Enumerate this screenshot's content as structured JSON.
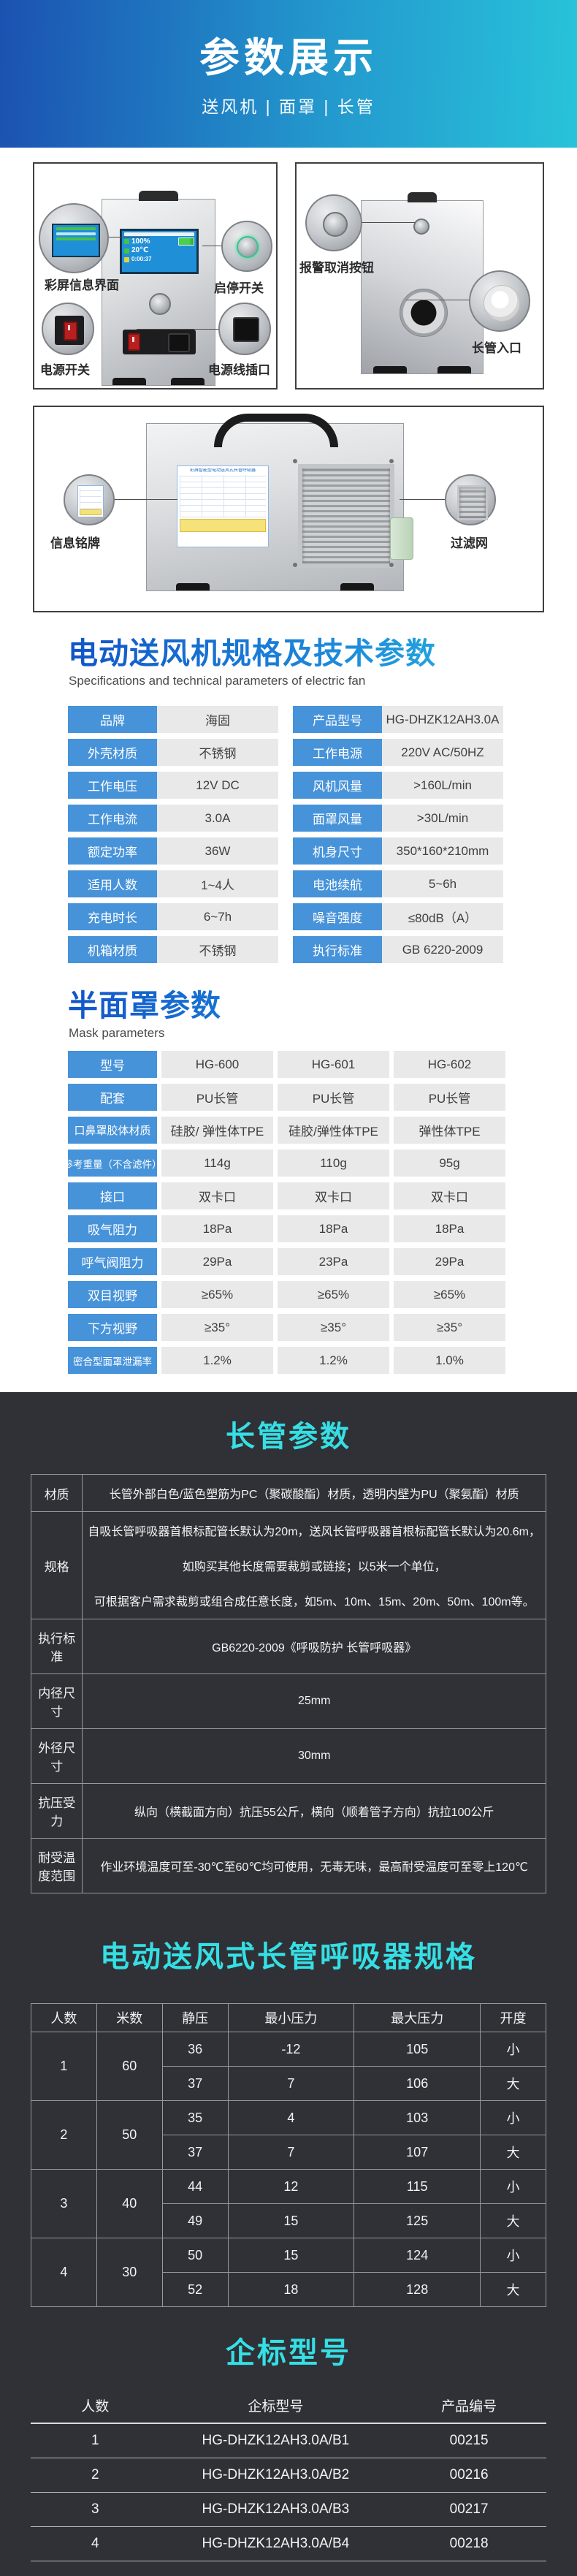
{
  "banner": {
    "title": "参数展示",
    "subtitle": "送风机 | 面罩 | 长管"
  },
  "colors": {
    "banner_blue": "#1b52b1",
    "banner_cyan": "#28c3da",
    "label_cell_blue": "#4793da",
    "value_cell_gray": "#e9e9e9",
    "dark_background": "#2f3136",
    "dark_title_cyan": "#35dfe4",
    "title_gradient_start": "#1155c8",
    "title_gradient_end": "#2cc4e0"
  },
  "photos": {
    "box1": {
      "screen": {
        "percent": "100%",
        "temp": "20℃",
        "time": "0:00:37"
      },
      "callouts": {
        "screen": "彩屏信息界面",
        "start_stop": "启停开关",
        "power_switch": "电源开关",
        "power_inlet": "电源线插口"
      }
    },
    "box2": {
      "callouts": {
        "alarm_cancel": "报警取消按钮",
        "tube_inlet": "长管入口"
      }
    },
    "box3": {
      "nameplate_title": "彩屏智能型电动送风式长管呼吸器",
      "callouts": {
        "nameplate": "信息铭牌",
        "filter": "过滤网"
      }
    }
  },
  "fan_section": {
    "title": "电动送风机规格及技术参数",
    "subtitle": "Specifications and technical parameters of electric fan",
    "rows": [
      {
        "l1": "品牌",
        "v1": "海固",
        "l2": "产品型号",
        "v2": "HG-DHZK12AH3.0A"
      },
      {
        "l1": "外壳材质",
        "v1": "不锈钢",
        "l2": "工作电源",
        "v2": "220V AC/50HZ"
      },
      {
        "l1": "工作电压",
        "v1": "12V DC",
        "l2": "风机风量",
        "v2": ">160L/min"
      },
      {
        "l1": "工作电流",
        "v1": "3.0A",
        "l2": "面罩风量",
        "v2": ">30L/min"
      },
      {
        "l1": "额定功率",
        "v1": "36W",
        "l2": "机身尺寸",
        "v2": "350*160*210mm"
      },
      {
        "l1": "适用人数",
        "v1": "1~4人",
        "l2": "电池续航",
        "v2": "5~6h"
      },
      {
        "l1": "充电时长",
        "v1": "6~7h",
        "l2": "噪音强度",
        "v2": "≤80dB（A）"
      },
      {
        "l1": "机箱材质",
        "v1": "不锈钢",
        "l2": "执行标准",
        "v2": "GB 6220-2009"
      }
    ]
  },
  "mask_section": {
    "title": "半面罩参数",
    "subtitle": "Mask parameters",
    "rows": [
      {
        "label": "型号",
        "values": [
          "HG-600",
          "HG-601",
          "HG-602"
        ]
      },
      {
        "label": "配套",
        "values": [
          "PU长管",
          "PU长管",
          "PU长管"
        ]
      },
      {
        "label": "口鼻罩胶体材质",
        "values": [
          "硅胶/ 弹性体TPE",
          "硅胶/弹性体TPE",
          "弹性体TPE"
        ]
      },
      {
        "label": "参考重量（不含滤件）",
        "values": [
          "114g",
          "110g",
          "95g"
        ]
      },
      {
        "label": "接口",
        "values": [
          "双卡口",
          "双卡口",
          "双卡口"
        ]
      },
      {
        "label": "吸气阻力",
        "values": [
          "18Pa",
          "18Pa",
          "18Pa"
        ]
      },
      {
        "label": "呼气阀阻力",
        "values": [
          "29Pa",
          "23Pa",
          "29Pa"
        ]
      },
      {
        "label": "双目视野",
        "values": [
          "≥65%",
          "≥65%",
          "≥65%"
        ]
      },
      {
        "label": "下方视野",
        "values": [
          "≥35°",
          "≥35°",
          "≥35°"
        ]
      },
      {
        "label": "密合型面罩泄漏率",
        "values": [
          "1.2%",
          "1.2%",
          "1.0%"
        ]
      }
    ]
  },
  "tube_section": {
    "title": "长管参数",
    "rows": [
      {
        "label": "材质",
        "lines": [
          "长管外部白色/蓝色塑筋为PC（聚碳酸酯）材质，透明内壁为PU（聚氨酯）材质"
        ]
      },
      {
        "label": "规格",
        "lines": [
          "自吸长管呼吸器首根标配管长默认为20m，送风长管呼吸器首根标配管长默认为20.6m，",
          "如购买其他长度需要裁剪或链接；以5米一个单位，",
          "可根据客户需求裁剪或组合成任意长度，如5m、10m、15m、20m、50m、100m等。"
        ]
      },
      {
        "label": "执行标准",
        "lines": [
          "GB6220-2009《呼吸防护 长管呼吸器》"
        ]
      },
      {
        "label": "内径尺寸",
        "lines": [
          "25mm"
        ]
      },
      {
        "label": "外径尺寸",
        "lines": [
          "30mm"
        ]
      },
      {
        "label": "抗压受力",
        "lines": [
          "纵向（横截面方向）抗压55公斤，横向（顺着管子方向）抗拉100公斤"
        ]
      },
      {
        "label": "耐受温度范围",
        "lines": [
          "作业环境温度可至-30℃至60℃均可使用，无毒无味，最高耐受温度可至零上120℃"
        ]
      }
    ]
  },
  "pressure_section": {
    "title": "电动送风式长管呼吸器规格",
    "headers": [
      "人数",
      "米数",
      "静压",
      "最小压力",
      "最大压力",
      "开度"
    ],
    "groups": [
      {
        "persons": "1",
        "meters": "60",
        "rows": [
          [
            "36",
            "-12",
            "105",
            "小"
          ],
          [
            "37",
            "7",
            "106",
            "大"
          ]
        ]
      },
      {
        "persons": "2",
        "meters": "50",
        "rows": [
          [
            "35",
            "4",
            "103",
            "小"
          ],
          [
            "37",
            "7",
            "107",
            "大"
          ]
        ]
      },
      {
        "persons": "3",
        "meters": "40",
        "rows": [
          [
            "44",
            "12",
            "115",
            "小"
          ],
          [
            "49",
            "15",
            "125",
            "大"
          ]
        ]
      },
      {
        "persons": "4",
        "meters": "30",
        "rows": [
          [
            "50",
            "15",
            "124",
            "小"
          ],
          [
            "52",
            "18",
            "128",
            "大"
          ]
        ]
      }
    ]
  },
  "model_section": {
    "title": "企标型号",
    "headers": [
      "人数",
      "企标型号",
      "产品编号"
    ],
    "rows": [
      [
        "1",
        "HG-DHZK12AH3.0A/B1",
        "00215"
      ],
      [
        "2",
        "HG-DHZK12AH3.0A/B2",
        "00216"
      ],
      [
        "3",
        "HG-DHZK12AH3.0A/B3",
        "00217"
      ],
      [
        "4",
        "HG-DHZK12AH3.0A/B4",
        "00218"
      ]
    ]
  }
}
